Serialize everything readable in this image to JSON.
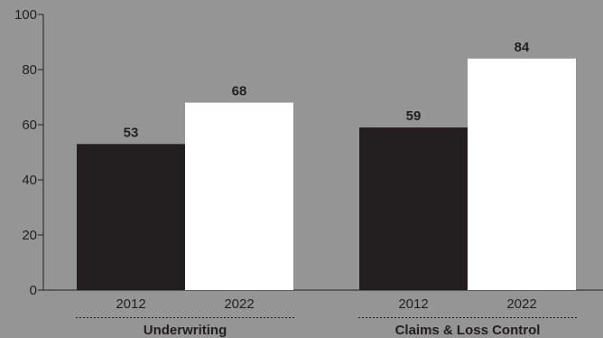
{
  "chart_data": {
    "type": "bar",
    "groups": [
      {
        "label": "Underwriting",
        "bars": [
          {
            "category": "2012",
            "value": 53,
            "data_label": "53",
            "color": "#231f20"
          },
          {
            "category": "2022",
            "value": 68,
            "data_label": "68",
            "color": "#ffffff"
          }
        ]
      },
      {
        "label": "Claims & Loss Control",
        "bars": [
          {
            "category": "2012",
            "value": 59,
            "data_label": "59",
            "color": "#231f20"
          },
          {
            "category": "2022",
            "value": 84,
            "data_label": "84",
            "color": "#ffffff"
          }
        ]
      }
    ],
    "ylim": [
      0,
      100
    ],
    "yticks": [
      "0",
      "20",
      "40",
      "60",
      "80",
      "100"
    ],
    "grid": false,
    "background_color": "#969595"
  }
}
